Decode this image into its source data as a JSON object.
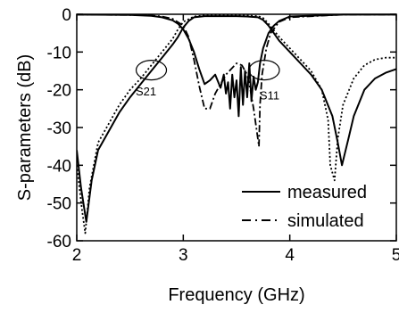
{
  "chart_data": {
    "type": "line",
    "xlabel": "Frequency (GHz)",
    "ylabel": "S-parameters (dB)",
    "xlim": [
      2,
      5
    ],
    "ylim": [
      -60,
      0
    ],
    "xticks": [
      2,
      3,
      4,
      5
    ],
    "yticks": [
      0,
      -10,
      -20,
      -30,
      -40,
      -50,
      -60
    ],
    "xtick_labels": [
      "2",
      "3",
      "4",
      "5"
    ],
    "ytick_labels": [
      "0",
      "-10",
      "-20",
      "-30",
      "-40",
      "-50",
      "-60"
    ],
    "grid": false,
    "legend_position": "bottom-right",
    "legend": [
      {
        "label": "measured",
        "style": "solid"
      },
      {
        "label": "simulated",
        "style": "dash-dot"
      }
    ],
    "annotations": [
      {
        "label": "S21",
        "ellipse_center": [
          2.7,
          -14.8
        ],
        "label_position": [
          2.65,
          -21.5
        ]
      },
      {
        "label": "S11",
        "ellipse_center": [
          3.76,
          -14.8
        ],
        "label_position": [
          3.81,
          -22.5
        ]
      }
    ],
    "series": [
      {
        "parameter": "S21",
        "style": "solid",
        "x": [
          2.0,
          2.04,
          2.09,
          2.14,
          2.2,
          2.3,
          2.4,
          2.5,
          2.6,
          2.7,
          2.8,
          2.9,
          2.95,
          3.0,
          3.05,
          3.1,
          3.2,
          3.3,
          3.5,
          3.6,
          3.7,
          3.75,
          3.8,
          3.85,
          3.9,
          4.0,
          4.1,
          4.2,
          4.3,
          4.4,
          4.45,
          4.49,
          4.55,
          4.6,
          4.7,
          4.8,
          4.9,
          5.0
        ],
        "y": [
          -36,
          -46,
          -55,
          -44,
          -36,
          -31,
          -26,
          -22,
          -18.5,
          -15,
          -11.5,
          -8,
          -6,
          -3.5,
          -1.8,
          -0.8,
          -0.5,
          -0.5,
          -0.5,
          -0.6,
          -0.8,
          -1.5,
          -3,
          -5,
          -7,
          -10,
          -13,
          -16,
          -20,
          -27,
          -34,
          -40,
          -33,
          -27,
          -20,
          -17,
          -15.5,
          -14.5
        ]
      },
      {
        "parameter": "S21",
        "style": "dotted",
        "x": [
          2.0,
          2.05,
          2.08,
          2.12,
          2.2,
          2.3,
          2.4,
          2.5,
          2.6,
          2.7,
          2.8,
          2.9,
          2.95,
          3.0,
          3.1,
          3.2,
          3.3,
          3.6,
          3.7,
          3.75,
          3.8,
          3.9,
          4.0,
          4.1,
          4.2,
          4.3,
          4.36,
          4.38,
          4.42,
          4.45,
          4.5,
          4.6,
          4.7,
          4.8,
          4.9,
          5.0
        ],
        "y": [
          -40,
          -52,
          -58,
          -46,
          -34,
          -29,
          -24,
          -20,
          -17,
          -13.5,
          -10,
          -6.5,
          -4,
          -2,
          -0.6,
          -0.3,
          -0.3,
          -0.3,
          -0.5,
          -1,
          -2.5,
          -6,
          -9,
          -12,
          -15,
          -20,
          -28,
          -40,
          -44,
          -33,
          -24,
          -17,
          -13.5,
          -12,
          -11.5,
          -11.5
        ]
      },
      {
        "parameter": "S11",
        "style": "solid",
        "x": [
          2.0,
          2.5,
          2.7,
          2.8,
          2.9,
          2.95,
          3.0,
          3.05,
          3.1,
          3.15,
          3.2,
          3.25,
          3.3,
          3.35,
          3.38,
          3.4,
          3.42,
          3.44,
          3.46,
          3.48,
          3.5,
          3.52,
          3.54,
          3.56,
          3.58,
          3.6,
          3.62,
          3.64,
          3.66,
          3.68,
          3.7,
          3.72,
          3.75,
          3.8,
          3.85,
          3.9,
          4.0,
          4.5,
          5.0
        ],
        "y": [
          -0.1,
          -0.2,
          -0.4,
          -0.8,
          -1.6,
          -2.5,
          -4,
          -6.5,
          -10,
          -14.5,
          -18.5,
          -17.5,
          -16,
          -19.5,
          -16,
          -21,
          -18,
          -25,
          -16,
          -22,
          -17.5,
          -27,
          -14,
          -24,
          -15,
          -22,
          -13,
          -23,
          -16.5,
          -20,
          -18,
          -13,
          -9,
          -5,
          -3,
          -1.8,
          -0.6,
          -0.1,
          -0.1
        ]
      },
      {
        "parameter": "S11",
        "style": "dash-dot",
        "x": [
          2.0,
          2.5,
          2.7,
          2.8,
          2.9,
          3.0,
          3.05,
          3.1,
          3.15,
          3.2,
          3.25,
          3.3,
          3.4,
          3.5,
          3.55,
          3.6,
          3.63,
          3.66,
          3.69,
          3.71,
          3.72,
          3.74,
          3.78,
          3.82,
          3.9,
          4.0,
          4.5,
          5.0
        ],
        "y": [
          -0.1,
          -0.2,
          -0.3,
          -0.6,
          -1.2,
          -3,
          -6,
          -12,
          -19,
          -25,
          -25,
          -21,
          -16,
          -13,
          -13.5,
          -16,
          -20,
          -25,
          -31,
          -35,
          -24,
          -16,
          -9,
          -5,
          -2,
          -0.8,
          -0.1,
          -0.1
        ]
      }
    ]
  }
}
